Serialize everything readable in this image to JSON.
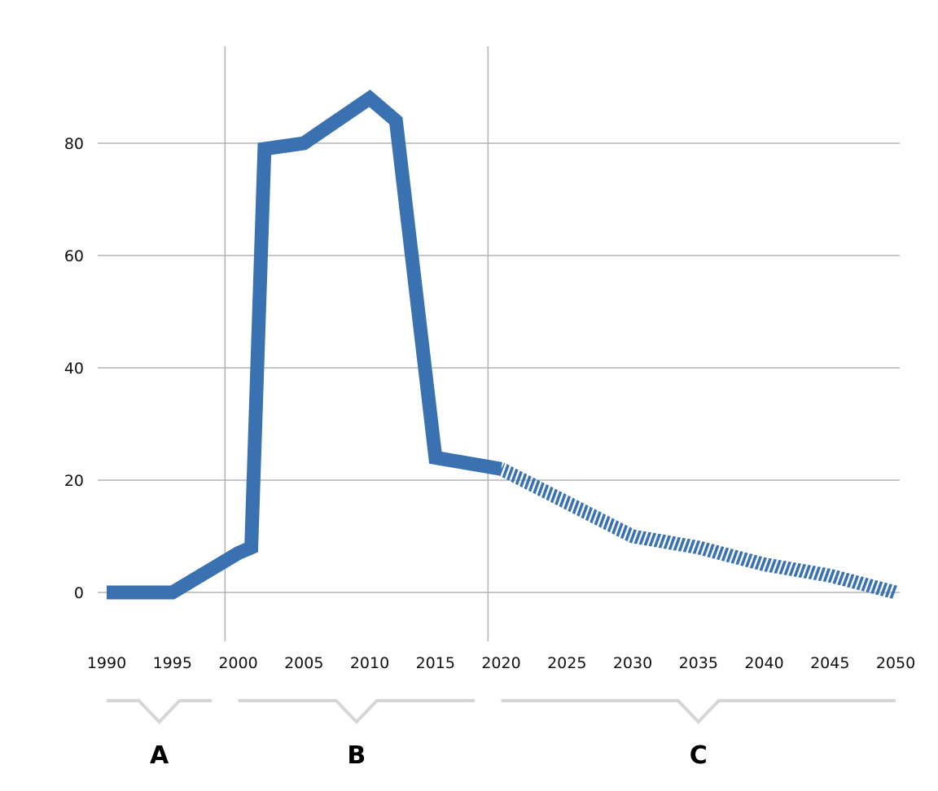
{
  "chart_data": {
    "type": "line",
    "title": "",
    "xlabel": "",
    "ylabel": "",
    "xlim": [
      1990,
      2050
    ],
    "ylim": [
      -8,
      90
    ],
    "x_ticks": [
      "1990",
      "1995",
      "2000",
      "2005",
      "2010",
      "2015",
      "2020",
      "2025",
      "2030",
      "2035",
      "2040",
      "2045",
      "2050"
    ],
    "y_ticks": [
      "0",
      "20",
      "40",
      "60",
      "80"
    ],
    "grid": "horizontal",
    "period_dividers": [
      1999,
      2019
    ],
    "periods": [
      {
        "label": "A",
        "from": 1990,
        "to": 1998
      },
      {
        "label": "B",
        "from": 2000,
        "to": 2018
      },
      {
        "label": "C",
        "from": 2020,
        "to": 2050
      }
    ],
    "series": [
      {
        "style": "solid",
        "points": [
          [
            1990,
            0
          ],
          [
            1995,
            0
          ],
          [
            2000,
            7
          ],
          [
            2001,
            8
          ],
          [
            2002,
            79
          ],
          [
            2005,
            80
          ],
          [
            2010,
            88
          ],
          [
            2012,
            84
          ],
          [
            2015,
            24
          ],
          [
            2020,
            22
          ]
        ]
      },
      {
        "style": "hatched (projection)",
        "points": [
          [
            2020,
            22
          ],
          [
            2025,
            16
          ],
          [
            2030,
            10
          ],
          [
            2035,
            8
          ],
          [
            2040,
            5
          ],
          [
            2045,
            3
          ],
          [
            2050,
            0
          ]
        ]
      }
    ],
    "colors": {
      "line": "#3a71b0",
      "grid": "#b3b3b3",
      "brace": "#d6d6d6",
      "text": "#111111"
    }
  }
}
